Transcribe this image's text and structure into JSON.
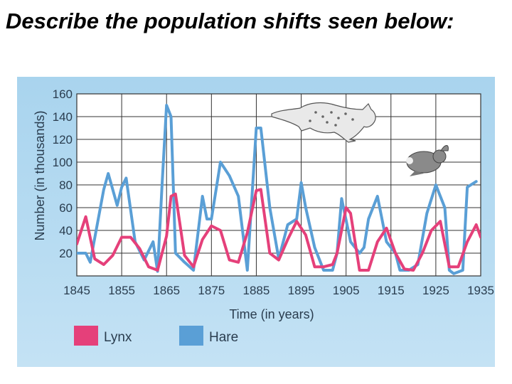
{
  "slide": {
    "title": "Describe the population shifts seen below:"
  },
  "colors": {
    "figure_bg": "#b3d9f0",
    "plot_bg": "#ffffff",
    "lynx": "#e5407a",
    "hare": "#5a9fd6",
    "grid": "#333333",
    "text": "#2a3d4f"
  },
  "chart_data": {
    "type": "line",
    "title": "",
    "xlabel": "Time (in years)",
    "ylabel": "Number (in thousands)",
    "xlim": [
      1845,
      1935
    ],
    "ylim": [
      0,
      160
    ],
    "x_ticks": [
      1845,
      1855,
      1865,
      1875,
      1885,
      1895,
      1905,
      1915,
      1925,
      1935
    ],
    "y_ticks": [
      20,
      40,
      60,
      80,
      100,
      120,
      140,
      160
    ],
    "grid": true,
    "legend_position": "bottom-left",
    "series": [
      {
        "name": "Lynx",
        "color": "#e5407a",
        "x": [
          1845,
          1847,
          1849,
          1851,
          1853,
          1855,
          1857,
          1859,
          1861,
          1863,
          1865,
          1866,
          1867,
          1869,
          1871,
          1873,
          1875,
          1877,
          1879,
          1881,
          1883,
          1885,
          1886,
          1888,
          1890,
          1892,
          1894,
          1896,
          1898,
          1900,
          1902,
          1903,
          1905,
          1906,
          1908,
          1910,
          1912,
          1914,
          1916,
          1918,
          1920,
          1922,
          1924,
          1926,
          1928,
          1930,
          1932,
          1934,
          1935
        ],
        "y": [
          28,
          52,
          15,
          10,
          18,
          34,
          34,
          24,
          8,
          5,
          35,
          70,
          72,
          18,
          8,
          32,
          44,
          40,
          14,
          12,
          38,
          75,
          76,
          20,
          14,
          32,
          48,
          36,
          8,
          8,
          10,
          20,
          60,
          55,
          5,
          5,
          30,
          42,
          20,
          6,
          5,
          20,
          40,
          48,
          8,
          8,
          30,
          45,
          34
        ]
      },
      {
        "name": "Hare",
        "color": "#5a9fd6",
        "x": [
          1845,
          1847,
          1848,
          1851,
          1852,
          1854,
          1855,
          1856,
          1858,
          1860,
          1862,
          1863,
          1864,
          1865,
          1866,
          1867,
          1869,
          1871,
          1873,
          1874,
          1875,
          1877,
          1879,
          1881,
          1883,
          1885,
          1886,
          1888,
          1890,
          1892,
          1894,
          1895,
          1896,
          1898,
          1900,
          1902,
          1903,
          1904,
          1906,
          1908,
          1909,
          1910,
          1912,
          1914,
          1916,
          1917,
          1919,
          1921,
          1923,
          1925,
          1927,
          1928,
          1929,
          1931,
          1932,
          1934
        ],
        "y": [
          20,
          20,
          12,
          76,
          90,
          62,
          78,
          86,
          30,
          14,
          30,
          4,
          80,
          150,
          140,
          20,
          12,
          5,
          70,
          50,
          50,
          100,
          88,
          70,
          5,
          130,
          130,
          60,
          15,
          45,
          50,
          82,
          60,
          25,
          5,
          5,
          20,
          68,
          30,
          20,
          25,
          50,
          70,
          30,
          20,
          5,
          5,
          10,
          55,
          80,
          60,
          5,
          2,
          5,
          78,
          83
        ]
      }
    ]
  }
}
